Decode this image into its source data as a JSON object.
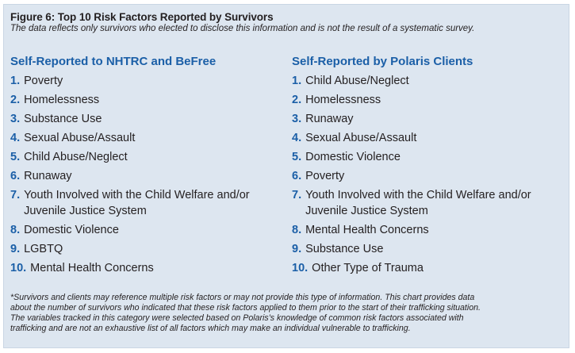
{
  "figure": {
    "title": "Figure 6: Top 10 Risk Factors Reported by Survivors",
    "subtitle": "The data reflects only survivors who elected to disclose this information and is not the result of a systematic survey."
  },
  "left_column": {
    "heading": "Self-Reported to NHTRC and BeFree",
    "items": [
      {
        "number": "1.",
        "lines": [
          "Poverty"
        ]
      },
      {
        "number": "2.",
        "lines": [
          "Homelessness"
        ]
      },
      {
        "number": "3.",
        "lines": [
          "Substance Use"
        ]
      },
      {
        "number": "4.",
        "lines": [
          "Sexual Abuse/Assault"
        ]
      },
      {
        "number": "5.",
        "lines": [
          "Child Abuse/Neglect"
        ]
      },
      {
        "number": "6.",
        "lines": [
          "Runaway"
        ]
      },
      {
        "number": "7.",
        "lines": [
          "Youth Involved with the Child Welfare and/or",
          "Juvenile Justice System"
        ]
      },
      {
        "number": "8.",
        "lines": [
          "Domestic Violence"
        ]
      },
      {
        "number": "9.",
        "lines": [
          "LGBTQ"
        ]
      },
      {
        "number": "10.",
        "lines": [
          "Mental Health Concerns"
        ]
      }
    ]
  },
  "right_column": {
    "heading": "Self-Reported by Polaris Clients",
    "items": [
      {
        "number": "1.",
        "lines": [
          "Child Abuse/Neglect"
        ]
      },
      {
        "number": "2.",
        "lines": [
          "Homelessness"
        ]
      },
      {
        "number": "3.",
        "lines": [
          "Runaway"
        ]
      },
      {
        "number": "4.",
        "lines": [
          "Sexual Abuse/Assault"
        ]
      },
      {
        "number": "5.",
        "lines": [
          "Domestic Violence"
        ]
      },
      {
        "number": "6.",
        "lines": [
          "Poverty"
        ]
      },
      {
        "number": "7.",
        "lines": [
          "Youth Involved with the Child Welfare and/or",
          "Juvenile Justice System"
        ]
      },
      {
        "number": "8.",
        "lines": [
          "Mental Health Concerns"
        ]
      },
      {
        "number": "9.",
        "lines": [
          "Substance Use"
        ]
      },
      {
        "number": "10.",
        "lines": [
          "Other Type of Trauma"
        ]
      }
    ]
  },
  "footnote": {
    "lines": [
      "*Survivors and clients may reference multiple risk factors or may not provide this type of information. This chart provides data",
      "about the number of survivors who indicated that these risk factors applied to them prior to the start of their trafficking situation.",
      "The variables tracked in this category were selected based on Polaris’s knowledge of common risk factors associated with",
      "trafficking and are not an exhaustive list of all factors which may make an individual vulnerable to trafficking."
    ]
  },
  "colors": {
    "panel_background": "#dde6f0",
    "accent_blue": "#1b5fa7",
    "text": "#231f20"
  }
}
